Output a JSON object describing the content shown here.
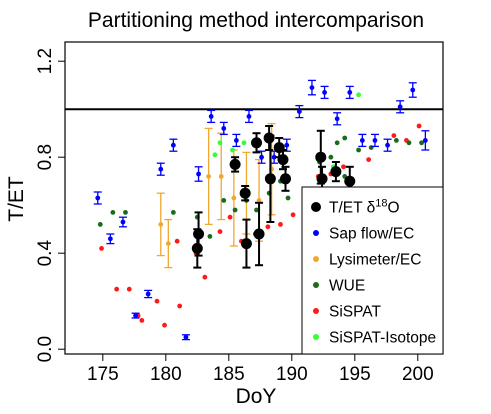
{
  "chart_data": {
    "type": "scatter",
    "title": "Partitioning method intercomparison",
    "xlabel": "DoY",
    "ylabel": "T/ET",
    "xlim": [
      172,
      202
    ],
    "ylim": [
      -0.02,
      1.28
    ],
    "x_ticks": [
      175,
      180,
      185,
      190,
      195,
      200
    ],
    "x_tick_labels": [
      "175",
      "180",
      "185",
      "190",
      "195",
      "200"
    ],
    "y_ticks": [
      0.0,
      0.4,
      0.8,
      1.2
    ],
    "y_tick_labels": [
      "0.0",
      "0.4",
      "0.8",
      "1.2"
    ],
    "reference_line": 1.0,
    "legend_position": "bottom-right",
    "series": [
      {
        "name": "Sap flow/EC",
        "name_prefix": "Sap flow/EC",
        "color": "#0000ff",
        "marker": "dot-errorbar",
        "points": [
          {
            "x": 174.6,
            "y": 0.63,
            "err": 0.025
          },
          {
            "x": 175.6,
            "y": 0.46,
            "err": 0.02
          },
          {
            "x": 176.6,
            "y": 0.53,
            "err": 0.02
          },
          {
            "x": 177.6,
            "y": 0.14,
            "err": 0.01
          },
          {
            "x": 178.6,
            "y": 0.23,
            "err": 0.015
          },
          {
            "x": 179.6,
            "y": 0.75,
            "err": 0.025
          },
          {
            "x": 180.6,
            "y": 0.85,
            "err": 0.025
          },
          {
            "x": 181.6,
            "y": 0.05,
            "err": 0.01
          },
          {
            "x": 182.6,
            "y": 0.73,
            "err": 0.03
          },
          {
            "x": 183.6,
            "y": 0.97,
            "err": 0.025
          },
          {
            "x": 184.6,
            "y": 0.92,
            "err": 0.025
          },
          {
            "x": 185.6,
            "y": 0.87,
            "err": 0.025
          },
          {
            "x": 186.6,
            "y": 0.97,
            "err": 0.025
          },
          {
            "x": 187.6,
            "y": 0.8,
            "err": 0.025
          },
          {
            "x": 188.6,
            "y": 0.8,
            "err": 0.025
          },
          {
            "x": 189.6,
            "y": 0.85,
            "err": 0.025
          },
          {
            "x": 190.6,
            "y": 0.99,
            "err": 0.025
          },
          {
            "x": 191.6,
            "y": 1.09,
            "err": 0.03
          },
          {
            "x": 192.6,
            "y": 1.07,
            "err": 0.025
          },
          {
            "x": 193.6,
            "y": 0.96,
            "err": 0.025
          },
          {
            "x": 194.6,
            "y": 1.07,
            "err": 0.025
          },
          {
            "x": 195.6,
            "y": 0.87,
            "err": 0.025
          },
          {
            "x": 196.6,
            "y": 0.87,
            "err": 0.025
          },
          {
            "x": 197.6,
            "y": 0.85,
            "err": 0.025
          },
          {
            "x": 198.6,
            "y": 1.01,
            "err": 0.025
          },
          {
            "x": 199.6,
            "y": 1.08,
            "err": 0.03
          },
          {
            "x": 200.6,
            "y": 0.87,
            "err": 0.04
          }
        ]
      },
      {
        "name": "Lysimeter/EC",
        "name_prefix": "Lysimeter/EC",
        "color": "#f0a830",
        "marker": "dot-errorbar",
        "points": [
          {
            "x": 179.6,
            "y": 0.52,
            "err": 0.13
          },
          {
            "x": 180.2,
            "y": 0.44,
            "err": 0.1
          },
          {
            "x": 183.4,
            "y": 0.72,
            "err": 0.2
          },
          {
            "x": 184.4,
            "y": 0.72,
            "err": 0.18
          },
          {
            "x": 185.4,
            "y": 0.63,
            "err": 0.2
          },
          {
            "x": 186.4,
            "y": 0.65,
            "err": 0.17
          },
          {
            "x": 187.4,
            "y": 0.62,
            "err": 0.17
          },
          {
            "x": 188.4,
            "y": 0.75,
            "err": 0.19
          }
        ]
      },
      {
        "name": "WUE",
        "name_prefix": "WUE",
        "color": "#1a6b1a",
        "marker": "dot",
        "points": [
          {
            "x": 174.8,
            "y": 0.52
          },
          {
            "x": 175.8,
            "y": 0.57
          },
          {
            "x": 176.8,
            "y": 0.57
          },
          {
            "x": 180.6,
            "y": 0.57
          },
          {
            "x": 182.5,
            "y": 0.55
          },
          {
            "x": 183.5,
            "y": 0.47
          },
          {
            "x": 184.6,
            "y": 0.62
          },
          {
            "x": 185.5,
            "y": 0.58
          },
          {
            "x": 186.4,
            "y": 0.62
          },
          {
            "x": 187.2,
            "y": 0.58
          },
          {
            "x": 188.2,
            "y": 0.65
          },
          {
            "x": 189.1,
            "y": 0.7
          },
          {
            "x": 189.7,
            "y": 0.63
          },
          {
            "x": 192.2,
            "y": 0.78
          },
          {
            "x": 193.1,
            "y": 0.8
          },
          {
            "x": 194.2,
            "y": 0.72
          },
          {
            "x": 195.3,
            "y": 0.83
          },
          {
            "x": 196.3,
            "y": 0.84
          },
          {
            "x": 198.3,
            "y": 0.87
          },
          {
            "x": 199.3,
            "y": 0.86
          },
          {
            "x": 200.3,
            "y": 0.86
          },
          {
            "x": 193.6,
            "y": 0.86
          },
          {
            "x": 194.2,
            "y": 0.88
          }
        ]
      },
      {
        "name": "SiSPAT",
        "name_prefix": "SiSPAT",
        "color": "#ff1a1a",
        "marker": "dot",
        "points": [
          {
            "x": 174.9,
            "y": 0.42
          },
          {
            "x": 176.1,
            "y": 0.25
          },
          {
            "x": 177.1,
            "y": 0.25
          },
          {
            "x": 177.8,
            "y": 0.14
          },
          {
            "x": 178.1,
            "y": 0.12
          },
          {
            "x": 179.3,
            "y": 0.2
          },
          {
            "x": 179.9,
            "y": 0.1
          },
          {
            "x": 180.9,
            "y": 0.45
          },
          {
            "x": 181.1,
            "y": 0.18
          },
          {
            "x": 182.4,
            "y": 0.4
          },
          {
            "x": 183.1,
            "y": 0.3
          },
          {
            "x": 184.3,
            "y": 0.49
          },
          {
            "x": 185.1,
            "y": 0.55
          },
          {
            "x": 186.0,
            "y": 0.45
          },
          {
            "x": 187.1,
            "y": 0.48
          },
          {
            "x": 188.1,
            "y": 0.51
          },
          {
            "x": 189.1,
            "y": 0.52
          },
          {
            "x": 190.1,
            "y": 0.56
          },
          {
            "x": 192.1,
            "y": 0.72
          },
          {
            "x": 193.1,
            "y": 0.73
          },
          {
            "x": 194.1,
            "y": 0.76
          },
          {
            "x": 196.1,
            "y": 0.79
          },
          {
            "x": 198.1,
            "y": 0.89
          },
          {
            "x": 199.1,
            "y": 0.87
          },
          {
            "x": 200.1,
            "y": 0.93
          }
        ]
      },
      {
        "name": "SiSPAT-Isotope",
        "name_prefix": "SiSPAT-Isotope",
        "color": "#33ff33",
        "marker": "dot",
        "points": [
          {
            "x": 183.9,
            "y": 0.81
          },
          {
            "x": 184.3,
            "y": 0.86
          },
          {
            "x": 185.3,
            "y": 0.83
          },
          {
            "x": 186.2,
            "y": 0.86
          },
          {
            "x": 187.3,
            "y": 0.87
          },
          {
            "x": 188.2,
            "y": 0.89
          },
          {
            "x": 189.2,
            "y": 0.8
          },
          {
            "x": 192.1,
            "y": 0.79
          },
          {
            "x": 193.3,
            "y": 0.76
          },
          {
            "x": 195.3,
            "y": 1.06
          }
        ]
      },
      {
        "name": "T/ET δ18O",
        "name_prefix": "T/ET δ",
        "name_superscript": "18",
        "name_suffix": "O",
        "color": "#000000",
        "marker": "big-dot-errorbar",
        "points": [
          {
            "x": 182.6,
            "y": 0.48,
            "err": 0.09
          },
          {
            "x": 182.5,
            "y": 0.42,
            "err": 0.08
          },
          {
            "x": 185.5,
            "y": 0.77,
            "err": 0.03
          },
          {
            "x": 186.3,
            "y": 0.65,
            "err": 0.03
          },
          {
            "x": 186.4,
            "y": 0.44,
            "err": 0.1
          },
          {
            "x": 187.2,
            "y": 0.86,
            "err": 0.04
          },
          {
            "x": 187.4,
            "y": 0.48,
            "err": 0.13
          },
          {
            "x": 188.2,
            "y": 0.88,
            "err": 0.05
          },
          {
            "x": 188.3,
            "y": 0.71,
            "err": 0.18
          },
          {
            "x": 189.0,
            "y": 0.84,
            "err": 0.04
          },
          {
            "x": 189.3,
            "y": 0.79,
            "err": 0.04
          },
          {
            "x": 189.5,
            "y": 0.71,
            "err": 0.05
          },
          {
            "x": 192.3,
            "y": 0.8,
            "err": 0.11
          },
          {
            "x": 192.4,
            "y": 0.71,
            "err": 0.05
          },
          {
            "x": 193.5,
            "y": 0.74,
            "err": 0.04
          },
          {
            "x": 194.6,
            "y": 0.7,
            "err": 0.06
          }
        ]
      }
    ],
    "legend_order": [
      "T/ET δ18O",
      "Sap flow/EC",
      "Lysimeter/EC",
      "WUE",
      "SiSPAT",
      "SiSPAT-Isotope"
    ]
  }
}
